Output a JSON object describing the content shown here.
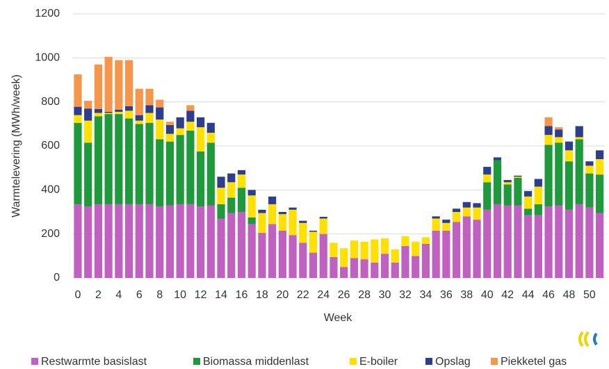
{
  "chart_data": {
    "type": "stacked_bar",
    "x_label": "Week",
    "y_label": "Warmtelevering (MWh/week)",
    "categories": [
      0,
      null,
      2,
      null,
      4,
      null,
      6,
      null,
      8,
      null,
      10,
      null,
      12,
      null,
      14,
      null,
      16,
      null,
      18,
      null,
      20,
      null,
      22,
      null,
      24,
      null,
      26,
      null,
      28,
      null,
      30,
      null,
      32,
      null,
      34,
      null,
      36,
      null,
      38,
      null,
      40,
      null,
      42,
      null,
      44,
      null,
      46,
      null,
      48,
      null,
      50,
      null
    ],
    "series": [
      {
        "name": "Restwarmte basislast",
        "color": "#c060c0",
        "values": [
          335,
          325,
          335,
          335,
          335,
          335,
          335,
          335,
          325,
          330,
          335,
          335,
          325,
          330,
          270,
          295,
          300,
          245,
          205,
          245,
          215,
          195,
          160,
          115,
          200,
          95,
          50,
          90,
          85,
          70,
          110,
          70,
          145,
          100,
          155,
          215,
          215,
          255,
          280,
          265,
          310,
          335,
          330,
          330,
          285,
          285,
          325,
          330,
          310,
          335,
          320,
          295
        ]
      },
      {
        "name": "Biomassa middenlast",
        "color": "#1e9a3c",
        "values": [
          370,
          290,
          400,
          410,
          410,
          390,
          365,
          370,
          305,
          290,
          315,
          335,
          250,
          285,
          65,
          70,
          110,
          30,
          0,
          0,
          0,
          0,
          0,
          0,
          0,
          0,
          0,
          0,
          0,
          0,
          0,
          0,
          0,
          0,
          0,
          0,
          0,
          0,
          0,
          0,
          125,
          200,
          95,
          125,
          30,
          50,
          280,
          285,
          220,
          295,
          155,
          175
        ]
      },
      {
        "name": "E-boiler",
        "color": "#ffe000",
        "values": [
          35,
          100,
          15,
          5,
          10,
          35,
          15,
          45,
          90,
          35,
          30,
          40,
          110,
          45,
          75,
          70,
          60,
          100,
          90,
          90,
          75,
          115,
          90,
          95,
          70,
          65,
          85,
          80,
          80,
          105,
          70,
          60,
          45,
          65,
          30,
          55,
          35,
          45,
          40,
          55,
          35,
          0,
          10,
          5,
          55,
          80,
          45,
          25,
          50,
          10,
          35,
          70
        ]
      },
      {
        "name": "Opslag",
        "color": "#2e3e8e",
        "values": [
          38,
          55,
          18,
          5,
          10,
          20,
          25,
          35,
          55,
          40,
          50,
          50,
          45,
          45,
          50,
          40,
          20,
          25,
          15,
          35,
          10,
          10,
          10,
          5,
          8,
          0,
          0,
          0,
          0,
          0,
          0,
          0,
          0,
          0,
          0,
          10,
          15,
          15,
          25,
          20,
          35,
          13,
          10,
          5,
          25,
          35,
          40,
          35,
          40,
          50,
          20,
          40
        ]
      },
      {
        "name": "Piekketel gas",
        "color": "#f5964a",
        "values": [
          147,
          35,
          202,
          250,
          225,
          210,
          120,
          75,
          35,
          15,
          0,
          25,
          0,
          0,
          0,
          0,
          0,
          0,
          0,
          0,
          0,
          0,
          0,
          0,
          0,
          0,
          0,
          0,
          0,
          0,
          0,
          0,
          0,
          0,
          0,
          0,
          0,
          0,
          0,
          0,
          0,
          0,
          0,
          0,
          0,
          0,
          40,
          10,
          0,
          0,
          0,
          0
        ]
      }
    ],
    "ylim": [
      0,
      1200
    ],
    "yticks": [
      0,
      200,
      400,
      600,
      800,
      1000,
      1200
    ],
    "grid": true,
    "legend": "bottom"
  }
}
